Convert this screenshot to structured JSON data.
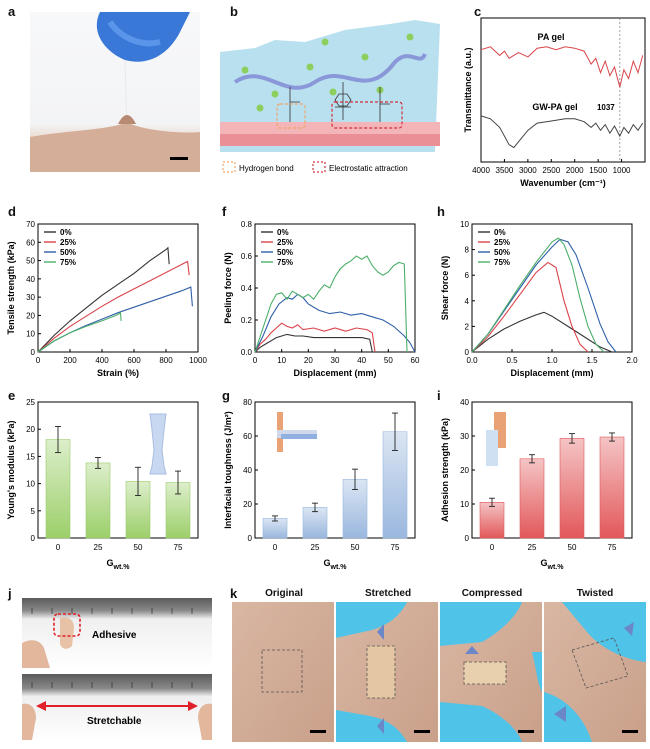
{
  "panels": {
    "a": "a",
    "b": "b",
    "c": "c",
    "d": "d",
    "e": "e",
    "f": "f",
    "g": "g",
    "h": "h",
    "i": "i",
    "j": "j",
    "k": "k"
  },
  "diagram_b": {
    "legend_hbond": "Hydrogen bond",
    "legend_electrostatic": "Electrostatic attraction"
  },
  "photo_j": {
    "adhesive_label": "Adhesive",
    "stretchable_label": "Stretchable"
  },
  "photo_k": {
    "labels": [
      "Original",
      "Stretched",
      "Compressed",
      "Twisted"
    ]
  },
  "colors": {
    "black_series": "#333333",
    "red_series": "#d9434a",
    "blue_series": "#2f5fa8",
    "green_series": "#4caf6a",
    "bar_green": "#9ccf6a",
    "bar_blue": "#9ab7de",
    "bar_red": "#e2585a"
  },
  "chart_data": [
    {
      "id": "c",
      "type": "line",
      "xlabel": "Wavenumber (cm⁻¹)",
      "ylabel": "Transmittance (a.u.)",
      "xlim": [
        4000,
        500
      ],
      "x_ticks": [
        4000,
        3500,
        3000,
        2500,
        2000,
        1500,
        1000
      ],
      "series": [
        {
          "name": "PA gel",
          "color": "#d9434a",
          "x": [
            4000,
            3800,
            3600,
            3500,
            3400,
            3200,
            3000,
            2800,
            2600,
            2400,
            2200,
            2000,
            1800,
            1650,
            1550,
            1450,
            1350,
            1250,
            1150,
            1037,
            950,
            850,
            750,
            650,
            550
          ],
          "y": [
            0.78,
            0.8,
            0.74,
            0.77,
            0.72,
            0.76,
            0.73,
            0.79,
            0.8,
            0.78,
            0.8,
            0.79,
            0.77,
            0.68,
            0.72,
            0.62,
            0.7,
            0.6,
            0.66,
            0.52,
            0.64,
            0.58,
            0.7,
            0.62,
            0.74
          ]
        },
        {
          "name": "GW-PA gel",
          "color": "#444444",
          "x": [
            4000,
            3800,
            3600,
            3400,
            3300,
            3200,
            3000,
            2800,
            2600,
            2400,
            2200,
            2000,
            1800,
            1650,
            1550,
            1450,
            1350,
            1250,
            1150,
            1037,
            950,
            850,
            750,
            650,
            550
          ],
          "y": [
            0.32,
            0.3,
            0.24,
            0.12,
            0.1,
            0.14,
            0.22,
            0.27,
            0.28,
            0.29,
            0.3,
            0.3,
            0.28,
            0.24,
            0.27,
            0.22,
            0.26,
            0.2,
            0.25,
            0.18,
            0.24,
            0.2,
            0.26,
            0.22,
            0.27
          ]
        }
      ],
      "annotations": [
        "PA gel",
        "GW-PA gel",
        "1037"
      ],
      "marker_x": 1037
    },
    {
      "id": "d",
      "type": "line",
      "xlabel": "Strain (%)",
      "ylabel": "Tensile strength (kPa)",
      "xlim": [
        0,
        1000
      ],
      "ylim": [
        0,
        70
      ],
      "x_ticks": [
        0,
        200,
        400,
        600,
        800,
        1000
      ],
      "y_ticks": [
        0,
        10,
        20,
        30,
        40,
        50,
        60,
        70
      ],
      "series": [
        {
          "name": "0%",
          "color": "#333333",
          "x": [
            0,
            100,
            200,
            300,
            400,
            500,
            600,
            700,
            800,
            812,
            820
          ],
          "y": [
            0,
            9,
            17,
            24,
            31,
            37,
            43,
            50,
            56,
            57,
            48
          ]
        },
        {
          "name": "25%",
          "color": "#d9434a",
          "x": [
            0,
            100,
            200,
            300,
            400,
            500,
            600,
            700,
            800,
            900,
            935,
            945
          ],
          "y": [
            0,
            7.5,
            14,
            19.5,
            25,
            30,
            34.5,
            39,
            43.5,
            48,
            49.5,
            42
          ]
        },
        {
          "name": "50%",
          "color": "#2f5fa8",
          "x": [
            0,
            100,
            200,
            300,
            400,
            500,
            600,
            700,
            800,
            900,
            955,
            965
          ],
          "y": [
            0,
            6,
            10.5,
            14.5,
            18,
            21.5,
            24.5,
            27.5,
            30.5,
            33.5,
            35.5,
            25
          ]
        },
        {
          "name": "75%",
          "color": "#4caf6a",
          "x": [
            0,
            100,
            200,
            300,
            400,
            500,
            515,
            520
          ],
          "y": [
            0,
            6,
            10.5,
            14,
            17,
            20.5,
            21.5,
            17
          ]
        }
      ]
    },
    {
      "id": "e",
      "type": "bar",
      "xlabel": "G",
      "xlabel_sub": "wt.%",
      "ylabel": "Young's modulus (kPa)",
      "categories": [
        "0",
        "25",
        "50",
        "75"
      ],
      "values": [
        18.1,
        13.8,
        10.4,
        10.2
      ],
      "errors": [
        2.4,
        1.0,
        2.6,
        2.1
      ],
      "ylim": [
        0,
        25
      ],
      "y_ticks": [
        0,
        5,
        10,
        15,
        20,
        25
      ]
    },
    {
      "id": "f",
      "type": "line",
      "xlabel": "Displacement (mm)",
      "ylabel": "Peeling force (N)",
      "xlim": [
        0,
        60
      ],
      "ylim": [
        0,
        0.8
      ],
      "x_ticks": [
        0,
        10,
        20,
        30,
        40,
        50,
        60
      ],
      "y_ticks": [
        0.0,
        0.2,
        0.4,
        0.6,
        0.8
      ],
      "series": [
        {
          "name": "0%",
          "color": "#333333",
          "x": [
            0,
            2,
            4,
            6,
            8,
            10,
            12,
            15,
            18,
            22,
            26,
            30,
            35,
            40,
            43,
            44
          ],
          "y": [
            0,
            0.03,
            0.05,
            0.07,
            0.09,
            0.1,
            0.11,
            0.1,
            0.1,
            0.09,
            0.09,
            0.09,
            0.09,
            0.09,
            0.08,
            0.0
          ]
        },
        {
          "name": "25%",
          "color": "#d9434a",
          "x": [
            0,
            2,
            4,
            6,
            8,
            10,
            12,
            14,
            16,
            18,
            22,
            26,
            30,
            34,
            38,
            42,
            44,
            45
          ],
          "y": [
            0,
            0.05,
            0.08,
            0.12,
            0.15,
            0.18,
            0.16,
            0.15,
            0.17,
            0.14,
            0.15,
            0.13,
            0.15,
            0.13,
            0.15,
            0.14,
            0.12,
            0.0
          ]
        },
        {
          "name": "50%",
          "color": "#2f5fa8",
          "x": [
            0,
            3,
            6,
            9,
            12,
            14,
            16,
            18,
            20,
            24,
            28,
            32,
            36,
            40,
            44,
            48,
            52,
            56,
            58,
            60
          ],
          "y": [
            0,
            0.1,
            0.22,
            0.3,
            0.34,
            0.33,
            0.36,
            0.34,
            0.3,
            0.26,
            0.24,
            0.25,
            0.23,
            0.24,
            0.22,
            0.2,
            0.16,
            0.1,
            0.06,
            0.0
          ]
        },
        {
          "name": "75%",
          "color": "#4caf6a",
          "x": [
            0,
            3,
            6,
            8,
            10,
            12,
            14,
            16,
            18,
            20,
            22,
            24,
            26,
            28,
            30,
            32,
            34,
            36,
            38,
            40,
            42,
            44,
            46,
            48,
            50,
            52,
            54,
            56,
            57
          ],
          "y": [
            0,
            0.15,
            0.3,
            0.36,
            0.37,
            0.33,
            0.38,
            0.36,
            0.34,
            0.36,
            0.33,
            0.38,
            0.42,
            0.4,
            0.47,
            0.52,
            0.55,
            0.57,
            0.6,
            0.58,
            0.6,
            0.54,
            0.5,
            0.48,
            0.5,
            0.54,
            0.56,
            0.55,
            0.0
          ]
        }
      ]
    },
    {
      "id": "g",
      "type": "bar",
      "xlabel": "G",
      "xlabel_sub": "wt.%",
      "ylabel": "Interfacial toughness (J/m²)",
      "categories": [
        "0",
        "25",
        "50",
        "75"
      ],
      "values": [
        11.5,
        18.0,
        34.5,
        62.5
      ],
      "errors": [
        1.5,
        2.5,
        6.0,
        11.0
      ],
      "ylim": [
        0,
        80
      ],
      "y_ticks": [
        0,
        20,
        40,
        60,
        80
      ]
    },
    {
      "id": "h",
      "type": "line",
      "xlabel": "Displacement (mm)",
      "ylabel": "Shear force (N)",
      "xlim": [
        0,
        2.0
      ],
      "ylim": [
        0,
        10
      ],
      "x_ticks": [
        0.0,
        0.5,
        1.0,
        1.5,
        2.0
      ],
      "y_ticks": [
        0,
        2,
        4,
        6,
        8,
        10
      ],
      "series": [
        {
          "name": "0%",
          "color": "#333333",
          "x": [
            0,
            0.2,
            0.4,
            0.6,
            0.8,
            0.9,
            1.0,
            1.2,
            1.4,
            1.6,
            1.75
          ],
          "y": [
            0,
            1.0,
            1.8,
            2.4,
            2.9,
            3.1,
            2.8,
            2.0,
            1.2,
            0.4,
            0.0
          ]
        },
        {
          "name": "25%",
          "color": "#d9434a",
          "x": [
            0,
            0.2,
            0.4,
            0.6,
            0.8,
            0.95,
            1.05,
            1.15,
            1.25,
            1.35,
            1.45
          ],
          "y": [
            0,
            1.2,
            2.8,
            4.5,
            6.2,
            7.0,
            6.6,
            4.0,
            2.0,
            0.6,
            0.0
          ]
        },
        {
          "name": "50%",
          "color": "#2f5fa8",
          "x": [
            0,
            0.2,
            0.4,
            0.6,
            0.8,
            1.0,
            1.1,
            1.2,
            1.3,
            1.45,
            1.6,
            1.7,
            1.8
          ],
          "y": [
            0,
            1.4,
            3.2,
            5.0,
            6.8,
            8.2,
            8.8,
            8.6,
            7.6,
            5.0,
            2.2,
            0.8,
            0.0
          ]
        },
        {
          "name": "75%",
          "color": "#4caf6a",
          "x": [
            0,
            0.2,
            0.4,
            0.6,
            0.8,
            1.0,
            1.08,
            1.15,
            1.25,
            1.35,
            1.45,
            1.55,
            1.65
          ],
          "y": [
            0,
            1.4,
            3.3,
            5.2,
            7.0,
            8.6,
            8.9,
            8.4,
            6.8,
            4.2,
            2.0,
            0.6,
            0.0
          ]
        }
      ]
    },
    {
      "id": "i",
      "type": "bar",
      "xlabel": "G",
      "xlabel_sub": "wt.%",
      "ylabel": "Adhesion strength (kPa)",
      "categories": [
        "0",
        "25",
        "50",
        "75"
      ],
      "values": [
        10.5,
        23.3,
        29.3,
        29.7
      ],
      "errors": [
        1.2,
        1.2,
        1.4,
        1.2
      ],
      "ylim": [
        0,
        40
      ],
      "y_ticks": [
        0,
        10,
        20,
        30,
        40
      ]
    }
  ]
}
